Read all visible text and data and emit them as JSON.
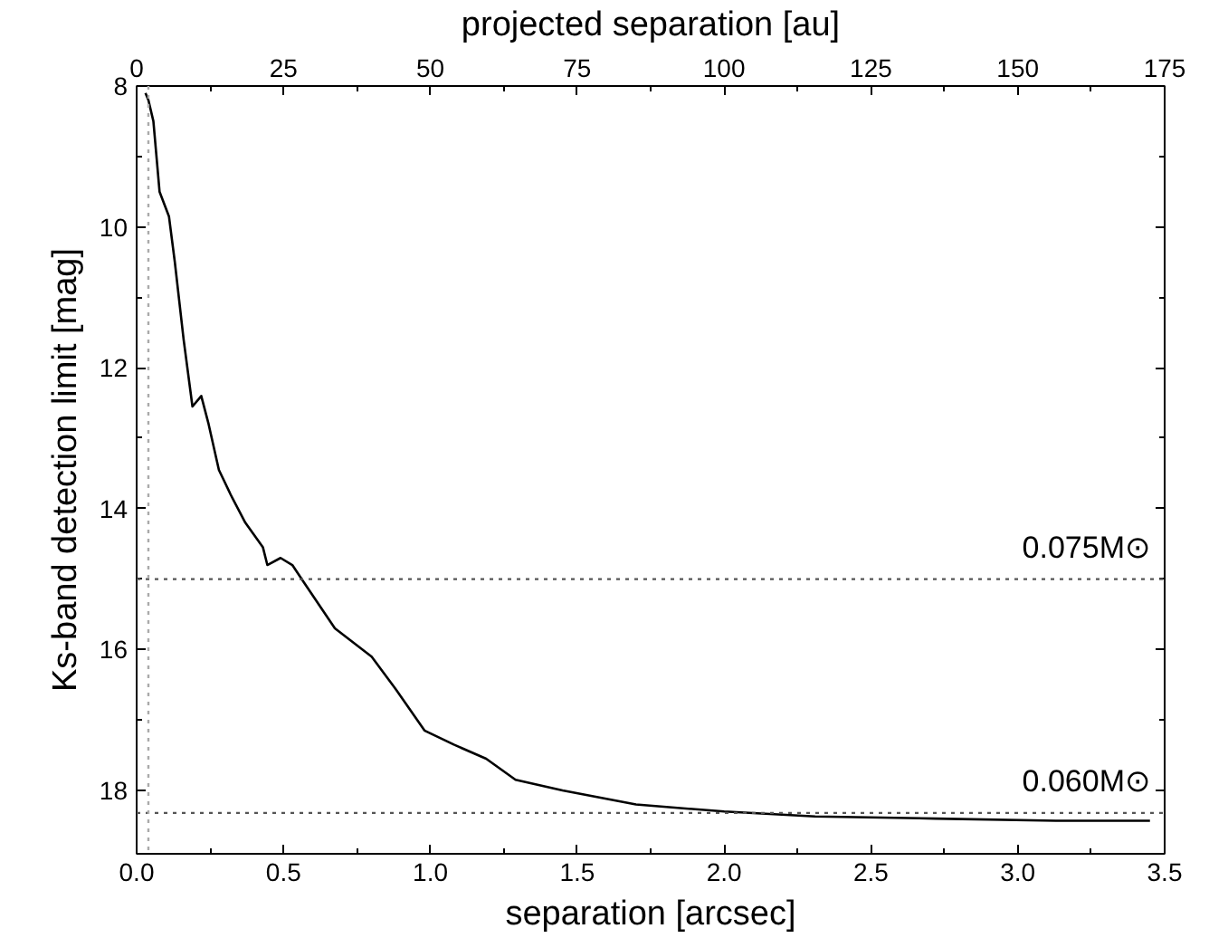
{
  "chart_data": {
    "type": "line",
    "xlabel": "separation [arcsec]",
    "ylabel": "Ks-band detection limit [mag]",
    "x2label": "projected separation [au]",
    "x": [
      0.03,
      0.04,
      0.057,
      0.078,
      0.11,
      0.13,
      0.16,
      0.19,
      0.22,
      0.245,
      0.28,
      0.32,
      0.37,
      0.43,
      0.445,
      0.49,
      0.53,
      0.57,
      0.675,
      0.8,
      0.88,
      0.98,
      1.08,
      1.19,
      1.29,
      1.45,
      1.7,
      2.0,
      2.31,
      2.72,
      3.13,
      3.45
    ],
    "series": [
      {
        "color": "#000000",
        "values": [
          8.1,
          8.2,
          8.5,
          9.5,
          9.85,
          10.5,
          11.6,
          12.55,
          12.4,
          12.8,
          13.45,
          13.8,
          14.2,
          14.55,
          14.8,
          14.7,
          14.8,
          15.05,
          15.7,
          16.1,
          16.55,
          17.15,
          17.35,
          17.55,
          17.85,
          18.0,
          18.2,
          18.3,
          18.37,
          18.4,
          18.43,
          18.43
        ]
      }
    ],
    "xlim": [
      0,
      3.5
    ],
    "xticks": [
      {
        "value": 0,
        "label": "0.0"
      },
      0.5,
      {
        "value": 1,
        "label": "1.0"
      },
      1.5,
      {
        "value": 2,
        "label": "2.0"
      },
      2.5,
      {
        "value": 3,
        "label": "3.0"
      },
      3.5
    ],
    "ylim": [
      18.9,
      8
    ],
    "yticks": [
      8,
      10,
      12,
      14,
      16,
      18
    ],
    "x2lim": [
      0,
      175
    ],
    "x2ticks": [
      0,
      25,
      50,
      75,
      100,
      125,
      150,
      175
    ],
    "ref_lines": [
      {
        "axis": "y",
        "value": 15.0,
        "label": "0.075M⊙",
        "color": "#555555",
        "line_style": "dotted"
      },
      {
        "axis": "y",
        "value": 18.32,
        "label": "0.060M⊙",
        "color": "#555555",
        "line_style": "dotted"
      },
      {
        "axis": "x",
        "value": 0.04,
        "label": null,
        "color": "#aaaaaa",
        "line_style": "dotted"
      }
    ],
    "grid": false
  }
}
